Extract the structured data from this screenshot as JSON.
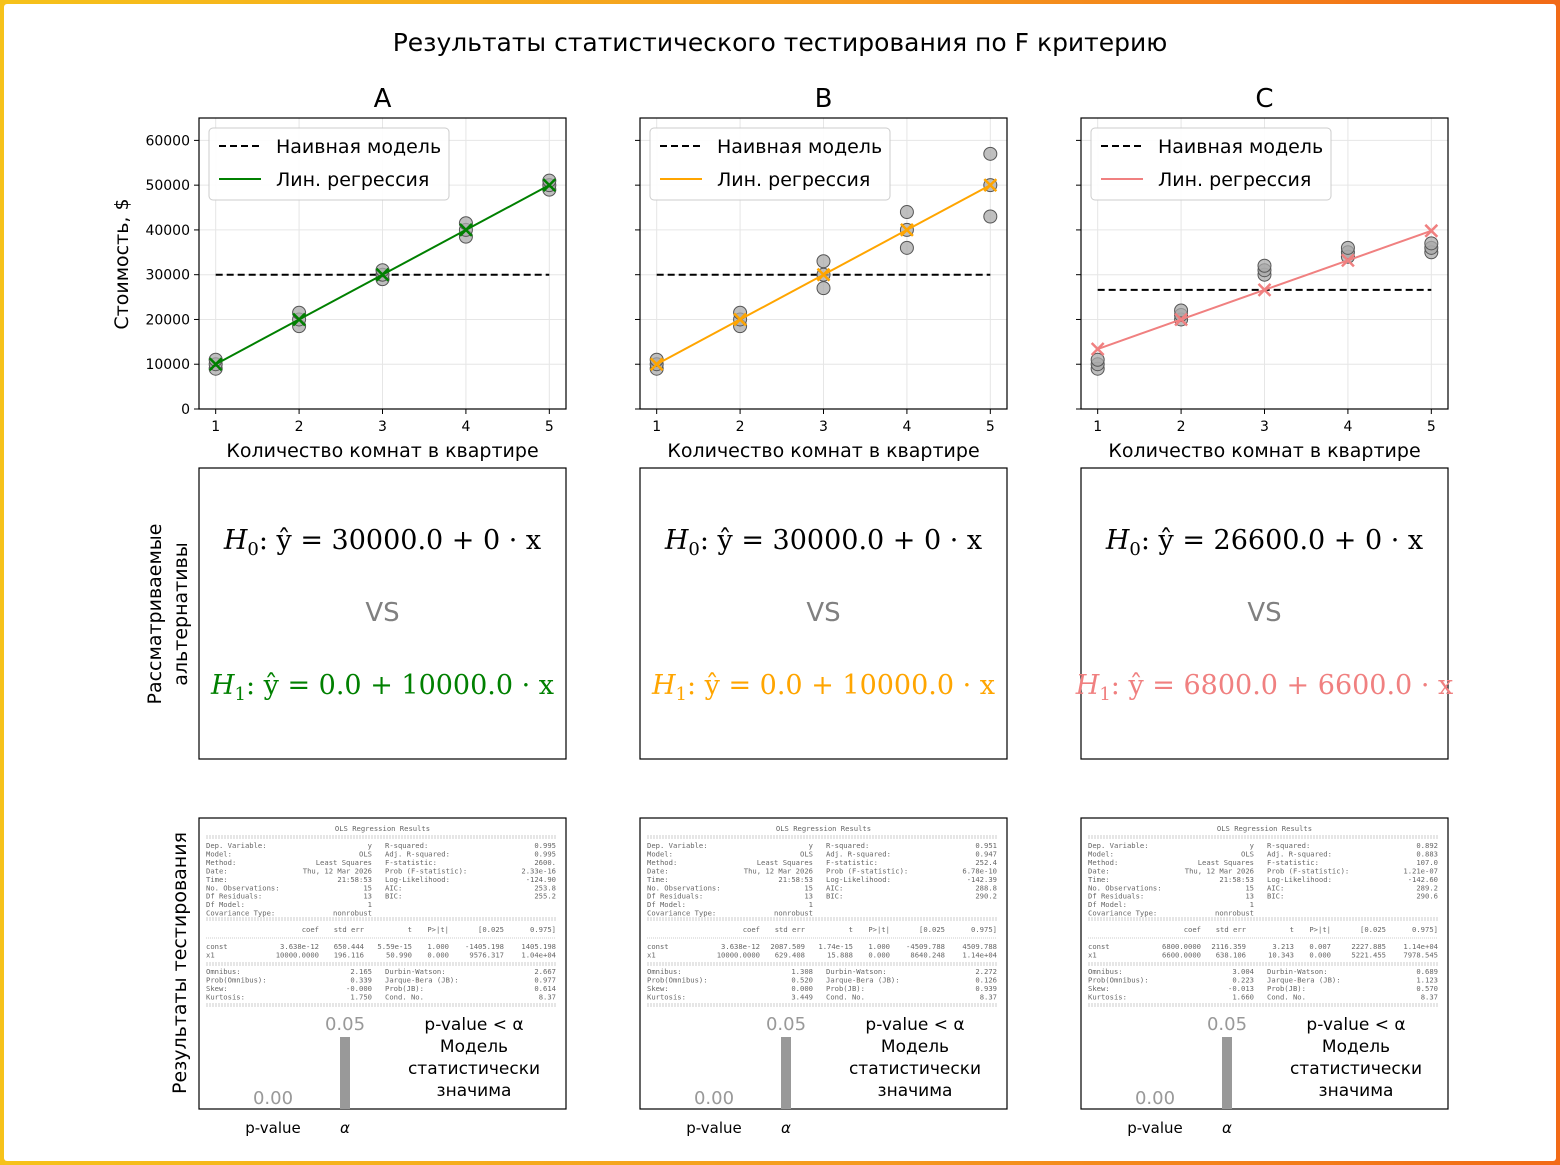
{
  "figure": {
    "title": "Результаты статистического тестирования по F критерию",
    "row2_ylabel_line1": "Рассматриваемые",
    "row2_ylabel_line2": "альтернативы",
    "row3_ylabel": "Результаты тестирования",
    "scatter_ylabel": "Стоимость, $",
    "scatter_xlabel": "Количество комнат в квартире",
    "legend_naive": "Наивная модель",
    "legend_reg": "Лин. регрессия",
    "vs_text": "VS",
    "bar_xtick_pvalue": "p-value",
    "bar_xtick_alpha": "α",
    "colors": {
      "naive": "#000000",
      "point_fill": "#a9a9a9",
      "vs": "#808080",
      "bar": "#999999",
      "bar_text": "#999999"
    }
  },
  "chart_data": [
    {
      "type": "scatter",
      "panel_title": "A",
      "color": "#008000",
      "xlim": [
        0.8,
        5.2
      ],
      "ylim": [
        0,
        65000
      ],
      "xticks": [
        1,
        2,
        3,
        4,
        5
      ],
      "yticks": [
        0,
        10000,
        20000,
        30000,
        40000,
        50000,
        60000
      ],
      "points": [
        [
          1,
          9000
        ],
        [
          1,
          10000
        ],
        [
          1,
          11000
        ],
        [
          2,
          18500
        ],
        [
          2,
          20000
        ],
        [
          2,
          21500
        ],
        [
          3,
          29000
        ],
        [
          3,
          30000
        ],
        [
          3,
          31000
        ],
        [
          4,
          38500
        ],
        [
          4,
          40000
        ],
        [
          4,
          41500
        ],
        [
          5,
          49000
        ],
        [
          5,
          50000
        ],
        [
          5,
          51000
        ]
      ],
      "naive_value": 30000,
      "reg_intercept": 0,
      "reg_slope": 10000,
      "h0": {
        "lhs": "H",
        "sub": "0",
        "rest": ": ŷ = 30000.0 + 0 · x"
      },
      "h1": {
        "lhs": "H",
        "sub": "1",
        "rest": ": ŷ = 0.0 + 10000.0 · x"
      },
      "ols": {
        "title": "OLS Regression Results",
        "top": [
          [
            "Dep. Variable:",
            "y",
            "R-squared:",
            "0.995"
          ],
          [
            "Model:",
            "OLS",
            "Adj. R-squared:",
            "0.995"
          ],
          [
            "Method:",
            "Least Squares",
            "F-statistic:",
            "2600."
          ],
          [
            "Date:",
            "Thu, 12 Mar 2026",
            "Prob (F-statistic):",
            "2.33e-16"
          ],
          [
            "Time:",
            "21:58:53",
            "Log-Likelihood:",
            "-124.90"
          ],
          [
            "No. Observations:",
            "15",
            "AIC:",
            "253.8"
          ],
          [
            "Df Residuals:",
            "13",
            "BIC:",
            "255.2"
          ],
          [
            "Df Model:",
            "1",
            "",
            ""
          ],
          [
            "Covariance Type:",
            "nonrobust",
            "",
            ""
          ]
        ],
        "coef_header": [
          "",
          "coef",
          "std err",
          "t",
          "P>|t|",
          "[0.025",
          "0.975]"
        ],
        "coef_rows": [
          [
            "const",
            "3.638e-12",
            "650.444",
            "5.59e-15",
            "1.000",
            "-1405.198",
            "1405.198"
          ],
          [
            "x1",
            "10000.0000",
            "196.116",
            "50.990",
            "0.000",
            "9576.317",
            "1.04e+04"
          ]
        ],
        "bottom": [
          [
            "Omnibus:",
            "2.165",
            "Durbin-Watson:",
            "2.667"
          ],
          [
            "Prob(Omnibus):",
            "0.339",
            "Jarque-Bera (JB):",
            "0.977"
          ],
          [
            "Skew:",
            "-0.000",
            "Prob(JB):",
            "0.614"
          ],
          [
            "Kurtosis:",
            "1.750",
            "Cond. No.",
            "8.37"
          ]
        ]
      },
      "bar": {
        "pvalue": 0.0,
        "alpha": 0.05,
        "pvalue_label": "0.00",
        "alpha_label": "0.05",
        "conclusion": [
          "p-value < α",
          "Модель",
          "статистически",
          "значима"
        ]
      }
    },
    {
      "type": "scatter",
      "panel_title": "B",
      "color": "#ffa500",
      "xlim": [
        0.8,
        5.2
      ],
      "ylim": [
        0,
        65000
      ],
      "xticks": [
        1,
        2,
        3,
        4,
        5
      ],
      "yticks": [
        0,
        10000,
        20000,
        30000,
        40000,
        50000,
        60000
      ],
      "points": [
        [
          1,
          9000
        ],
        [
          1,
          10000
        ],
        [
          1,
          11000
        ],
        [
          2,
          18500
        ],
        [
          2,
          20000
        ],
        [
          2,
          21500
        ],
        [
          3,
          27000
        ],
        [
          3,
          30000
        ],
        [
          3,
          33000
        ],
        [
          4,
          36000
        ],
        [
          4,
          40000
        ],
        [
          4,
          44000
        ],
        [
          5,
          43000
        ],
        [
          5,
          50000
        ],
        [
          5,
          57000
        ]
      ],
      "naive_value": 30000,
      "reg_intercept": 0,
      "reg_slope": 10000,
      "h0": {
        "lhs": "H",
        "sub": "0",
        "rest": ": ŷ = 30000.0 + 0 · x"
      },
      "h1": {
        "lhs": "H",
        "sub": "1",
        "rest": ": ŷ = 0.0 + 10000.0 · x"
      },
      "ols": {
        "title": "OLS Regression Results",
        "top": [
          [
            "Dep. Variable:",
            "y",
            "R-squared:",
            "0.951"
          ],
          [
            "Model:",
            "OLS",
            "Adj. R-squared:",
            "0.947"
          ],
          [
            "Method:",
            "Least Squares",
            "F-statistic:",
            "252.4"
          ],
          [
            "Date:",
            "Thu, 12 Mar 2026",
            "Prob (F-statistic):",
            "6.78e-10"
          ],
          [
            "Time:",
            "21:58:53",
            "Log-Likelihood:",
            "-142.39"
          ],
          [
            "No. Observations:",
            "15",
            "AIC:",
            "288.8"
          ],
          [
            "Df Residuals:",
            "13",
            "BIC:",
            "290.2"
          ],
          [
            "Df Model:",
            "1",
            "",
            ""
          ],
          [
            "Covariance Type:",
            "nonrobust",
            "",
            ""
          ]
        ],
        "coef_header": [
          "",
          "coef",
          "std err",
          "t",
          "P>|t|",
          "[0.025",
          "0.975]"
        ],
        "coef_rows": [
          [
            "const",
            "3.638e-12",
            "2087.509",
            "1.74e-15",
            "1.000",
            "-4509.788",
            "4509.788"
          ],
          [
            "x1",
            "10000.0000",
            "629.408",
            "15.888",
            "0.000",
            "8640.248",
            "1.14e+04"
          ]
        ],
        "bottom": [
          [
            "Omnibus:",
            "1.308",
            "Durbin-Watson:",
            "2.272"
          ],
          [
            "Prob(Omnibus):",
            "0.520",
            "Jarque-Bera (JB):",
            "0.126"
          ],
          [
            "Skew:",
            "0.000",
            "Prob(JB):",
            "0.939"
          ],
          [
            "Kurtosis:",
            "3.449",
            "Cond. No.",
            "8.37"
          ]
        ]
      },
      "bar": {
        "pvalue": 0.0,
        "alpha": 0.05,
        "pvalue_label": "0.00",
        "alpha_label": "0.05",
        "conclusion": [
          "p-value < α",
          "Модель",
          "статистически",
          "значима"
        ]
      }
    },
    {
      "type": "scatter",
      "panel_title": "C",
      "color": "#f08080",
      "xlim": [
        0.8,
        5.2
      ],
      "ylim": [
        0,
        65000
      ],
      "xticks": [
        1,
        2,
        3,
        4,
        5
      ],
      "yticks": [
        0,
        10000,
        20000,
        30000,
        40000,
        50000,
        60000
      ],
      "points": [
        [
          1,
          9000
        ],
        [
          1,
          10000
        ],
        [
          1,
          11000
        ],
        [
          2,
          20000
        ],
        [
          2,
          21000
        ],
        [
          2,
          22000
        ],
        [
          3,
          30000
        ],
        [
          3,
          31000
        ],
        [
          3,
          32000
        ],
        [
          4,
          34000
        ],
        [
          4,
          35000
        ],
        [
          4,
          36000
        ],
        [
          5,
          35000
        ],
        [
          5,
          36000
        ],
        [
          5,
          37000
        ]
      ],
      "naive_value": 26600,
      "reg_intercept": 6800,
      "reg_slope": 6600,
      "h0": {
        "lhs": "H",
        "sub": "0",
        "rest": ": ŷ = 26600.0 + 0 · x"
      },
      "h1": {
        "lhs": "H",
        "sub": "1",
        "rest": ": ŷ = 6800.0 + 6600.0 · x"
      },
      "ols": {
        "title": "OLS Regression Results",
        "top": [
          [
            "Dep. Variable:",
            "y",
            "R-squared:",
            "0.892"
          ],
          [
            "Model:",
            "OLS",
            "Adj. R-squared:",
            "0.883"
          ],
          [
            "Method:",
            "Least Squares",
            "F-statistic:",
            "107.0"
          ],
          [
            "Date:",
            "Thu, 12 Mar 2026",
            "Prob (F-statistic):",
            "1.21e-07"
          ],
          [
            "Time:",
            "21:58:53",
            "Log-Likelihood:",
            "-142.60"
          ],
          [
            "No. Observations:",
            "15",
            "AIC:",
            "289.2"
          ],
          [
            "Df Residuals:",
            "13",
            "BIC:",
            "290.6"
          ],
          [
            "Df Model:",
            "1",
            "",
            ""
          ],
          [
            "Covariance Type:",
            "nonrobust",
            "",
            ""
          ]
        ],
        "coef_header": [
          "",
          "coef",
          "std err",
          "t",
          "P>|t|",
          "[0.025",
          "0.975]"
        ],
        "coef_rows": [
          [
            "const",
            "6800.0000",
            "2116.359",
            "3.213",
            "0.007",
            "2227.885",
            "1.14e+04"
          ],
          [
            "x1",
            "6600.0000",
            "638.106",
            "10.343",
            "0.000",
            "5221.455",
            "7978.545"
          ]
        ],
        "bottom": [
          [
            "Omnibus:",
            "3.004",
            "Durbin-Watson:",
            "0.689"
          ],
          [
            "Prob(Omnibus):",
            "0.223",
            "Jarque-Bera (JB):",
            "1.123"
          ],
          [
            "Skew:",
            "-0.013",
            "Prob(JB):",
            "0.570"
          ],
          [
            "Kurtosis:",
            "1.660",
            "Cond. No.",
            "8.37"
          ]
        ]
      },
      "bar": {
        "pvalue": 0.0,
        "alpha": 0.05,
        "pvalue_label": "0.00",
        "alpha_label": "0.05",
        "conclusion": [
          "p-value < α",
          "Модель",
          "статистически",
          "значима"
        ]
      }
    }
  ]
}
